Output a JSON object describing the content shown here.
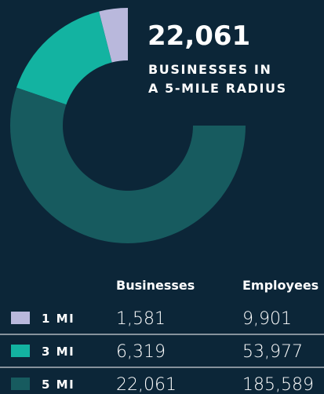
{
  "chart_data": {
    "type": "donut",
    "caption": [
      "BUSINESSES IN",
      "A 5-MILE RADIUS"
    ],
    "categories": [
      "1 MI",
      "3 MI",
      "5 MI"
    ],
    "colors": [
      "#b9b8dc",
      "#13b3a1",
      "#175b5f"
    ],
    "series": [
      {
        "name": "Businesses",
        "values": [
          1581,
          6319,
          22061
        ],
        "value_labels": [
          "1,581",
          "6,319",
          "22,061"
        ]
      },
      {
        "name": "Employees",
        "values": [
          9901,
          53977,
          185589
        ],
        "value_labels": [
          "9,901",
          "53,977",
          "185,589"
        ]
      }
    ]
  }
}
